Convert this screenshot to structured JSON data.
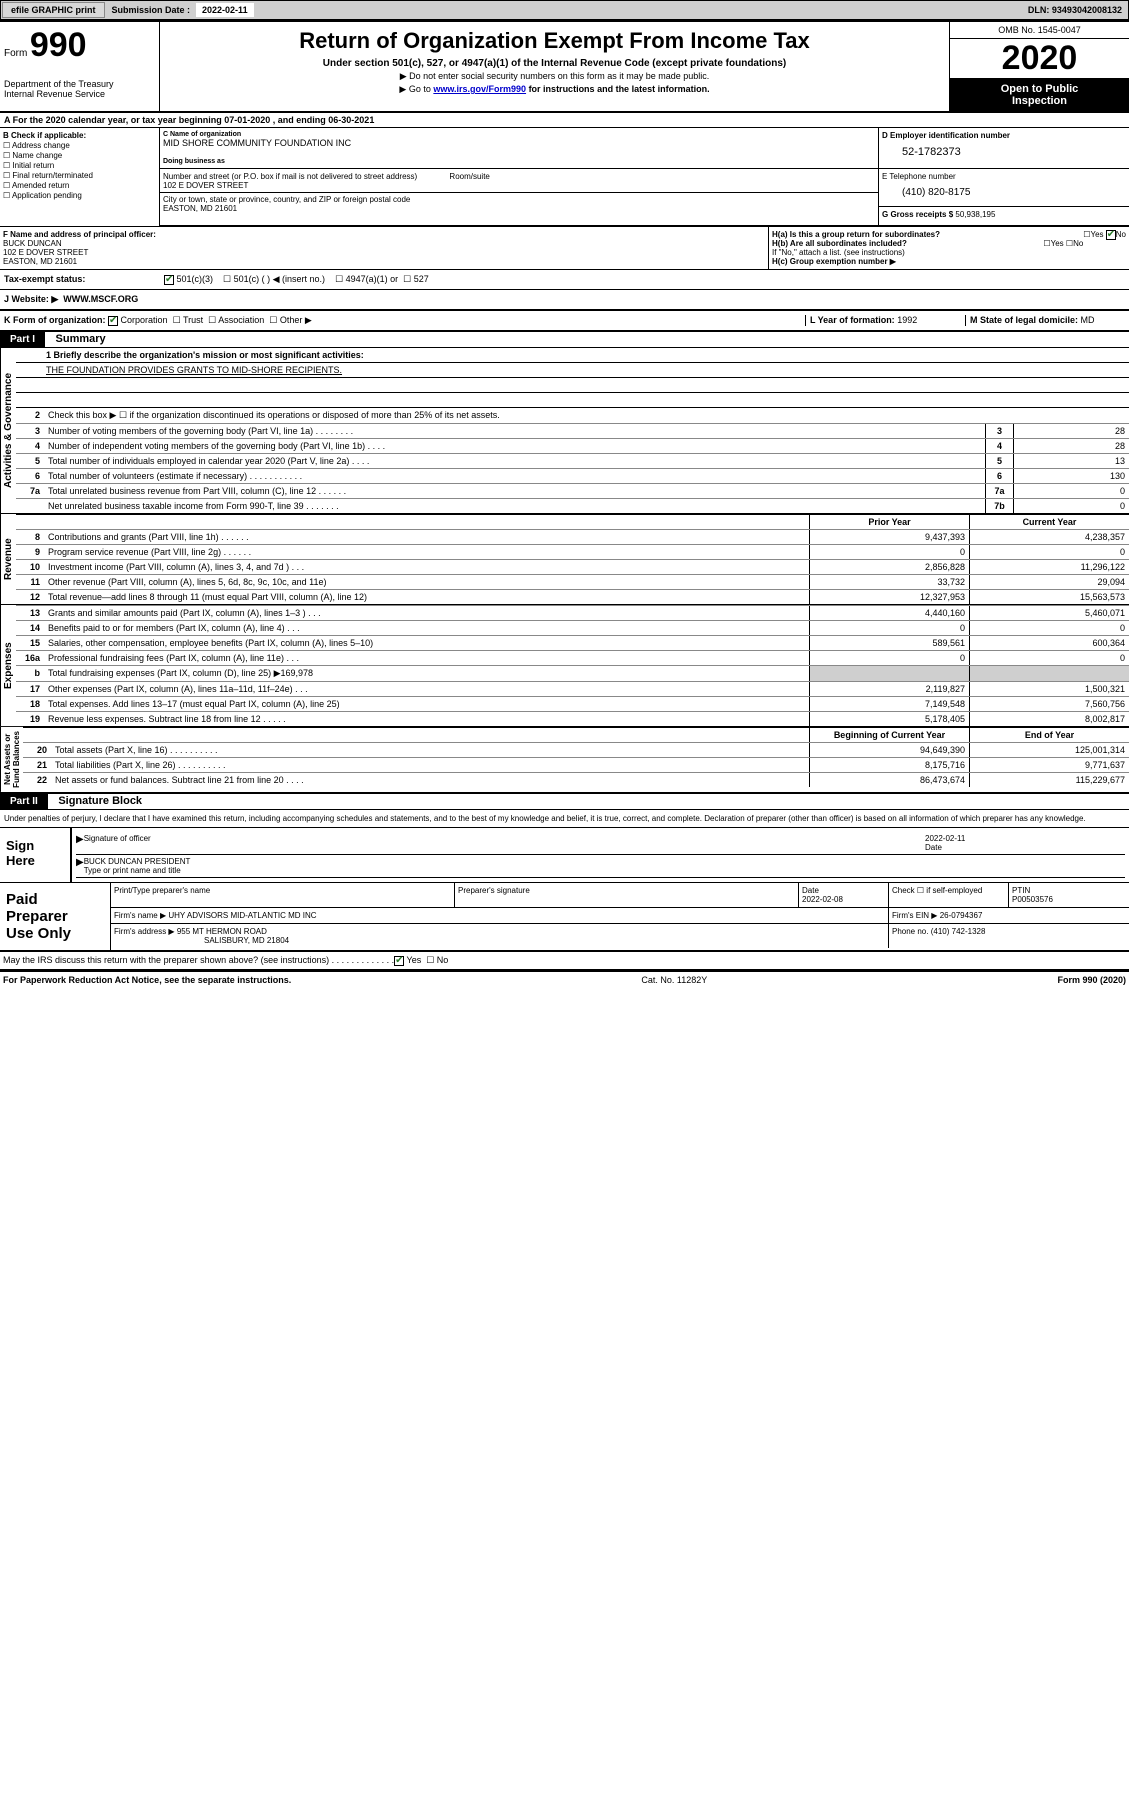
{
  "top": {
    "efile": "efile GRAPHIC print",
    "subm_label": "Submission Date : ",
    "subm_date": "2022-02-11",
    "dln": "DLN: 93493042008132"
  },
  "header": {
    "form_word": "Form",
    "form_num": "990",
    "dept": "Department of the Treasury\nInternal Revenue Service",
    "title": "Return of Organization Exempt From Income Tax",
    "sub1": "Under section 501(c), 527, or 4947(a)(1) of the Internal Revenue Code (except private foundations)",
    "instr1": "▶ Do not enter social security numbers on this form as it may be made public.",
    "instr2_pre": "▶ Go to ",
    "instr2_link": "www.irs.gov/Form990",
    "instr2_post": " for instructions and the latest information.",
    "omb": "OMB No. 1545-0047",
    "year": "2020",
    "open_pub": "Open to Public\nInspection"
  },
  "rowA": "A For the 2020 calendar year, or tax year beginning 07-01-2020   , and ending 06-30-2021",
  "secB": {
    "hd": "B Check if applicable:",
    "items": [
      "Address change",
      "Name change",
      "Initial return",
      "Final return/terminated",
      "Amended return",
      "Application pending"
    ]
  },
  "secC": {
    "name_lbl": "C Name of organization",
    "name_val": "MID SHORE COMMUNITY FOUNDATION INC",
    "dba": "Doing business as",
    "ein_lbl": "D Employer identification number",
    "ein_val": "52-1782373",
    "addr_lbl": "Number and street (or P.O. box if mail is not delivered to street address)",
    "room_lbl": "Room/suite",
    "addr_val": "102 E DOVER STREET",
    "city_lbl": "City or town, state or province, country, and ZIP or foreign postal code",
    "city_val": "EASTON, MD  21601",
    "tel_lbl": "E Telephone number",
    "tel_val": "(410) 820-8175",
    "gross_lbl": "G Gross receipts $",
    "gross_val": "50,938,195"
  },
  "secF": {
    "lbl": "F  Name and address of principal officer:",
    "name": "BUCK DUNCAN",
    "addr1": "102 E DOVER STREET",
    "addr2": "EASTON, MD  21601"
  },
  "secH": {
    "ha": "H(a)  Is this a group return for subordinates?",
    "hb": "H(b)  Are all subordinates included?",
    "hb_note": "If \"No,\" attach a list. (see instructions)",
    "hc": "H(c)  Group exemption number ▶",
    "yes": "Yes",
    "no": "No"
  },
  "secI": {
    "lbl": "Tax-exempt status:",
    "c501c3": "501(c)(3)",
    "c501c": "501(c) ( ) ◀ (insert no.)",
    "c4947": "4947(a)(1) or",
    "c527": "527"
  },
  "secJ": {
    "lbl": "J   Website: ▶",
    "val": "WWW.MSCF.ORG"
  },
  "secK": {
    "k": "K Form of organization:",
    "corp": "Corporation",
    "trust": "Trust",
    "assoc": "Association",
    "other": "Other ▶",
    "l_lbl": "L Year of formation:",
    "l_val": "1992",
    "m_lbl": "M State of legal domicile:",
    "m_val": "MD"
  },
  "partI": {
    "tag": "Part I",
    "title": "Summary",
    "q1": "1  Briefly describe the organization's mission or most significant activities:",
    "mission": "THE FOUNDATION PROVIDES GRANTS TO MID-SHORE RECIPIENTS.",
    "q2": "Check this box ▶ ☐  if the organization discontinued its operations or disposed of more than 25% of its net assets.",
    "lines_single": [
      {
        "n": "3",
        "t": "Number of voting members of the governing body (Part VI, line 1a) . . . . . . . .",
        "b": "3",
        "v": "28"
      },
      {
        "n": "4",
        "t": "Number of independent voting members of the governing body (Part VI, line 1b) . . . .",
        "b": "4",
        "v": "28"
      },
      {
        "n": "5",
        "t": "Total number of individuals employed in calendar year 2020 (Part V, line 2a) . . . .",
        "b": "5",
        "v": "13"
      },
      {
        "n": "6",
        "t": "Total number of volunteers (estimate if necessary) . . . . . . . . . . .",
        "b": "6",
        "v": "130"
      },
      {
        "n": "7a",
        "t": "Total unrelated business revenue from Part VIII, column (C), line 12 . . . . . .",
        "b": "7a",
        "v": "0"
      },
      {
        "n": "",
        "t": "Net unrelated business taxable income from Form 990-T, line 39 . . . . . . .",
        "b": "7b",
        "v": "0"
      }
    ],
    "col_py": "Prior Year",
    "col_cy": "Current Year",
    "lines_rev": [
      {
        "n": "8",
        "t": "Contributions and grants (Part VIII, line 1h) . . . . . .",
        "py": "9,437,393",
        "cy": "4,238,357"
      },
      {
        "n": "9",
        "t": "Program service revenue (Part VIII, line 2g) . . . . . .",
        "py": "0",
        "cy": "0"
      },
      {
        "n": "10",
        "t": "Investment income (Part VIII, column (A), lines 3, 4, and 7d ) . . .",
        "py": "2,856,828",
        "cy": "11,296,122"
      },
      {
        "n": "11",
        "t": "Other revenue (Part VIII, column (A), lines 5, 6d, 8c, 9c, 10c, and 11e)",
        "py": "33,732",
        "cy": "29,094"
      },
      {
        "n": "12",
        "t": "Total revenue—add lines 8 through 11 (must equal Part VIII, column (A), line 12)",
        "py": "12,327,953",
        "cy": "15,563,573"
      }
    ],
    "lines_exp": [
      {
        "n": "13",
        "t": "Grants and similar amounts paid (Part IX, column (A), lines 1–3 ) . . .",
        "py": "4,440,160",
        "cy": "5,460,071"
      },
      {
        "n": "14",
        "t": "Benefits paid to or for members (Part IX, column (A), line 4) . . .",
        "py": "0",
        "cy": "0"
      },
      {
        "n": "15",
        "t": "Salaries, other compensation, employee benefits (Part IX, column (A), lines 5–10)",
        "py": "589,561",
        "cy": "600,364"
      },
      {
        "n": "16a",
        "t": "Professional fundraising fees (Part IX, column (A), line 11e) . . .",
        "py": "0",
        "cy": "0"
      },
      {
        "n": "b",
        "t": "Total fundraising expenses (Part IX, column (D), line 25) ▶169,978",
        "py": "",
        "cy": "",
        "grey": true
      },
      {
        "n": "17",
        "t": "Other expenses (Part IX, column (A), lines 11a–11d, 11f–24e) . . .",
        "py": "2,119,827",
        "cy": "1,500,321"
      },
      {
        "n": "18",
        "t": "Total expenses. Add lines 13–17 (must equal Part IX, column (A), line 25)",
        "py": "7,149,548",
        "cy": "7,560,756"
      },
      {
        "n": "19",
        "t": "Revenue less expenses. Subtract line 18 from line 12 . . . . .",
        "py": "5,178,405",
        "cy": "8,002,817"
      }
    ],
    "col_boy": "Beginning of Current Year",
    "col_eoy": "End of Year",
    "lines_na": [
      {
        "n": "20",
        "t": "Total assets (Part X, line 16) . . . . . . . . . .",
        "py": "94,649,390",
        "cy": "125,001,314"
      },
      {
        "n": "21",
        "t": "Total liabilities (Part X, line 26) . . . . . . . . . .",
        "py": "8,175,716",
        "cy": "9,771,637"
      },
      {
        "n": "22",
        "t": "Net assets or fund balances. Subtract line 21 from line 20 . . . .",
        "py": "86,473,674",
        "cy": "115,229,677"
      }
    ],
    "side_labels": {
      "ag": "Activities & Governance",
      "rev": "Revenue",
      "exp": "Expenses",
      "na": "Net Assets or\nFund Balances"
    }
  },
  "partII": {
    "tag": "Part II",
    "title": "Signature Block",
    "perjury": "Under penalties of perjury, I declare that I have examined this return, including accompanying schedules and statements, and to the best of my knowledge and belief, it is true, correct, and complete. Declaration of preparer (other than officer) is based on all information of which preparer has any knowledge.",
    "sign_here": "Sign\nHere",
    "sig_officer": "Signature of officer",
    "sig_date": "2022-02-11",
    "date_lbl": "Date",
    "officer_name": "BUCK DUNCAN  PRESIDENT",
    "type_lbl": "Type or print name and title",
    "paid": "Paid\nPreparer\nUse Only",
    "pt_name_lbl": "Print/Type preparer's name",
    "pt_sig_lbl": "Preparer's signature",
    "pt_date_lbl": "Date",
    "pt_date": "2022-02-08",
    "pt_check": "Check ☐  if self-employed",
    "ptin_lbl": "PTIN",
    "ptin": "P00503576",
    "firm_name_lbl": "Firm's name    ▶",
    "firm_name": "UHY ADVISORS MID-ATLANTIC MD INC",
    "firm_ein_lbl": "Firm's EIN ▶",
    "firm_ein": "26-0794367",
    "firm_addr_lbl": "Firm's address ▶",
    "firm_addr1": "955 MT HERMON ROAD",
    "firm_addr2": "SALISBURY, MD  21804",
    "phone_lbl": "Phone no.",
    "phone": "(410) 742-1328",
    "discuss": "May the IRS discuss this return with the preparer shown above? (see instructions) . . . . . . . . . . . . .",
    "yes": "Yes",
    "no": "No"
  },
  "footer": {
    "left": "For Paperwork Reduction Act Notice, see the separate instructions.",
    "mid": "Cat. No. 11282Y",
    "right": "Form 990 (2020)"
  }
}
